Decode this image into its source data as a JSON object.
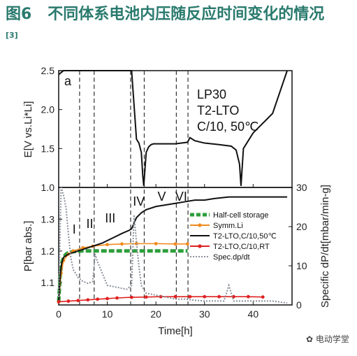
{
  "caption": {
    "prefix": "图6",
    "text": "不同体系电池内压随反应时间变化的情况",
    "ref": "[3]"
  },
  "watermark": "电动学堂",
  "chart_data": [
    {
      "type": "line",
      "panel_label": "a",
      "ylabel": "E[V vs.Li*Li]",
      "ylim": [
        1.0,
        2.5
      ],
      "yticks": [
        "1.0",
        "1.5",
        "2.0",
        "2.5"
      ],
      "xlim": [
        0,
        48
      ],
      "annotation_lines": [
        "LP30",
        "T2-LTO",
        "C/10, 50℃"
      ],
      "series": [
        {
          "name": "",
          "color": "#111111",
          "x": [
            0,
            1.0,
            1.5,
            2.0,
            4.0,
            6.0,
            10.0,
            14.0,
            15.0,
            16.0,
            16.5,
            17.0,
            17.3,
            17.5,
            18.0,
            18.5,
            19.0,
            19.5,
            20.0,
            24.0,
            26.5,
            27.0,
            28.0,
            30.0,
            33.0,
            35.5,
            36.5,
            37.2,
            37.5,
            38.0,
            39.0,
            40.0,
            44.0,
            47.0
          ],
          "y": [
            2.45,
            2.5,
            2.5,
            2.5,
            2.5,
            2.5,
            2.5,
            2.5,
            2.5,
            1.62,
            1.57,
            1.45,
            1.15,
            1.02,
            1.45,
            1.52,
            1.55,
            1.56,
            1.56,
            1.56,
            1.58,
            1.64,
            1.6,
            1.57,
            1.55,
            1.53,
            1.48,
            1.3,
            1.02,
            1.5,
            1.6,
            1.7,
            1.95,
            2.5
          ]
        }
      ]
    },
    {
      "type": "line",
      "xlabel": "Time[h]",
      "xlim": [
        0,
        48
      ],
      "xticks": [
        "0",
        "10",
        "20",
        "30",
        "40"
      ],
      "ylabel": "P[bar abs.]",
      "ylim": [
        1.03,
        1.4
      ],
      "yticks": [
        "1.1",
        "1.2",
        "1.3",
        "1.4"
      ],
      "y2label": "Specific dP/dt[mbar/min-g]",
      "y2lim": [
        0,
        30
      ],
      "y2ticks": [
        "0",
        "10",
        "20",
        "30"
      ],
      "phase_labels": [
        "I",
        "II",
        "III",
        "IV",
        "V",
        "VI"
      ],
      "legend": {
        "placement": "center-right",
        "entries": [
          "Half-cell storage",
          "Symm.Li",
          "T2-LTO,C/10,50℃",
          "T2-LTO,C/10,RT",
          "Spec.dp/dt"
        ]
      },
      "series": [
        {
          "name": "Half-cell storage",
          "color": "#2e9e3a",
          "style": "dashed-thick",
          "x": [
            0,
            0.3,
            0.6,
            1.0,
            1.5,
            2.0,
            3,
            5,
            8,
            12,
            20,
            26.5
          ],
          "y": [
            1.04,
            1.12,
            1.16,
            1.18,
            1.19,
            1.195,
            1.198,
            1.2,
            1.2,
            1.2,
            1.2,
            1.2
          ]
        },
        {
          "name": "Symm.Li",
          "color": "#f08a1e",
          "style": "markers",
          "x": [
            0,
            0.5,
            1,
            2,
            3,
            5,
            7,
            10,
            13,
            16,
            20,
            24,
            26.5
          ],
          "y": [
            1.04,
            1.13,
            1.17,
            1.19,
            1.2,
            1.21,
            1.215,
            1.22,
            1.222,
            1.223,
            1.223,
            1.222,
            1.222
          ]
        },
        {
          "name": "T2-LTO,C/10,50℃",
          "color": "#111111",
          "style": "solid",
          "x": [
            0,
            0.3,
            0.6,
            1,
            2,
            3,
            4,
            5,
            7,
            9,
            11,
            13,
            14.5,
            15,
            16,
            17,
            18,
            20,
            22,
            24,
            26,
            28,
            30,
            32,
            35,
            40,
            47
          ],
          "y": [
            1.04,
            1.12,
            1.16,
            1.18,
            1.19,
            1.195,
            1.2,
            1.205,
            1.215,
            1.225,
            1.24,
            1.255,
            1.265,
            1.27,
            1.305,
            1.32,
            1.33,
            1.34,
            1.345,
            1.35,
            1.355,
            1.36,
            1.36,
            1.365,
            1.37,
            1.37,
            1.37
          ]
        },
        {
          "name": "T2-LTO,C/10,RT",
          "color": "#e02020",
          "style": "markers",
          "x": [
            0,
            2,
            4,
            6,
            8,
            10,
            12,
            15,
            18,
            21,
            24,
            27,
            30,
            33,
            36,
            39,
            42
          ],
          "y": [
            1.04,
            1.042,
            1.044,
            1.046,
            1.048,
            1.05,
            1.052,
            1.054,
            1.055,
            1.056,
            1.056,
            1.056,
            1.056,
            1.056,
            1.056,
            1.056,
            1.055
          ]
        },
        {
          "name": "Spec.dp/dt",
          "color": "#8a9099",
          "style": "dotted",
          "axis": "right",
          "x": [
            0,
            0.5,
            1,
            1.5,
            2,
            2.5,
            3,
            4,
            5,
            6,
            7,
            7.5,
            8,
            9,
            10,
            12,
            14,
            15,
            15.5,
            16,
            16.5,
            17,
            18,
            20,
            22,
            24,
            26,
            28,
            30,
            32,
            34,
            35,
            36,
            38,
            40,
            44,
            47
          ],
          "y": [
            2,
            30,
            28,
            25,
            18,
            12,
            9,
            7,
            6,
            5.5,
            6,
            13,
            11,
            8,
            5,
            4.5,
            4,
            5,
            23,
            16,
            10,
            5,
            3,
            2.5,
            2,
            1.5,
            1.5,
            1.2,
            1,
            1,
            1,
            5,
            1,
            1,
            1,
            1,
            0.5
          ]
        }
      ]
    }
  ]
}
